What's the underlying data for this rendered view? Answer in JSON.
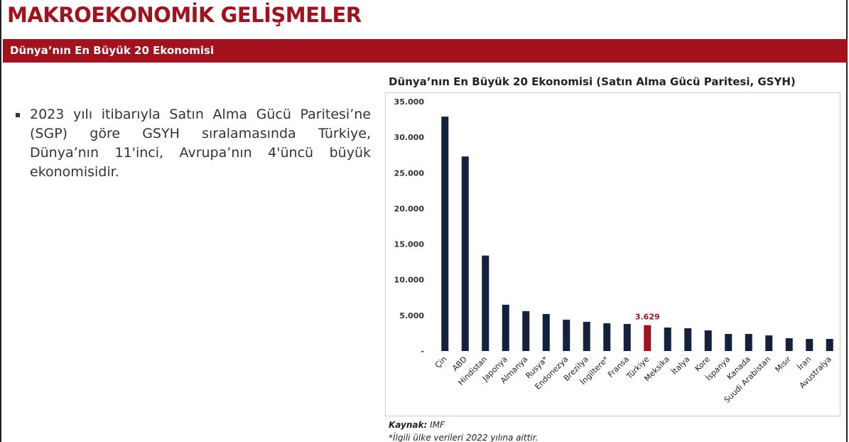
{
  "header": {
    "title": "MAKROEKONOMİK GELİŞMELER",
    "section": "Dünya’nın En Büyük 20 Ekonomisi"
  },
  "bullet": "2023 yılı itibarıyla Satın Alma Gücü Paritesi’ne (SGP) göre GSYH sıralamasında Türkiye, Dünya’nın 11'inci, Avrupa’nın 4'üncü büyük ekonomisidir.",
  "chart_data": {
    "type": "bar",
    "title": "Dünya’nın En Büyük 20 Ekonomisi (Satın Alma Gücü Paritesi, GSYH)",
    "categories": [
      "Çin",
      "ABD",
      "Hindistan",
      "Japonya",
      "Almanya",
      "Rusya*",
      "Endonezya",
      "Brezilya",
      "İngiltere*",
      "Fransa",
      "Türkiye",
      "Meksika",
      "İtalya",
      "Kore",
      "İspanya",
      "Kanada",
      "Suudi Arabistan",
      "Mısır",
      "İran",
      "Avustralya"
    ],
    "values": [
      32900,
      27300,
      13400,
      6500,
      5600,
      5200,
      4400,
      4100,
      3900,
      3800,
      3629,
      3300,
      3200,
      2900,
      2400,
      2400,
      2200,
      1800,
      1700,
      1700
    ],
    "value_labels": [
      null,
      null,
      null,
      null,
      null,
      null,
      null,
      null,
      null,
      null,
      "3.629",
      null,
      null,
      null,
      null,
      null,
      null,
      null,
      null,
      null
    ],
    "colors": [
      "#14213d",
      "#14213d",
      "#14213d",
      "#14213d",
      "#14213d",
      "#14213d",
      "#14213d",
      "#14213d",
      "#14213d",
      "#14213d",
      "#a3121c",
      "#14213d",
      "#14213d",
      "#14213d",
      "#14213d",
      "#14213d",
      "#14213d",
      "#14213d",
      "#14213d",
      "#14213d"
    ],
    "ylim": [
      0,
      35000
    ],
    "yticks": [
      {
        "value": 0,
        "label": "-"
      },
      {
        "value": 5000,
        "label": "5.000"
      },
      {
        "value": 10000,
        "label": "10.000"
      },
      {
        "value": 15000,
        "label": "15.000"
      },
      {
        "value": 20000,
        "label": "20.000"
      },
      {
        "value": 25000,
        "label": "25.000"
      },
      {
        "value": 30000,
        "label": "30.000"
      },
      {
        "value": 35000,
        "label": "35.000"
      }
    ]
  },
  "source": {
    "label": "Kaynak:",
    "text": "IMF",
    "note": "*İlgili ülke verileri 2022 yılına aittir."
  }
}
